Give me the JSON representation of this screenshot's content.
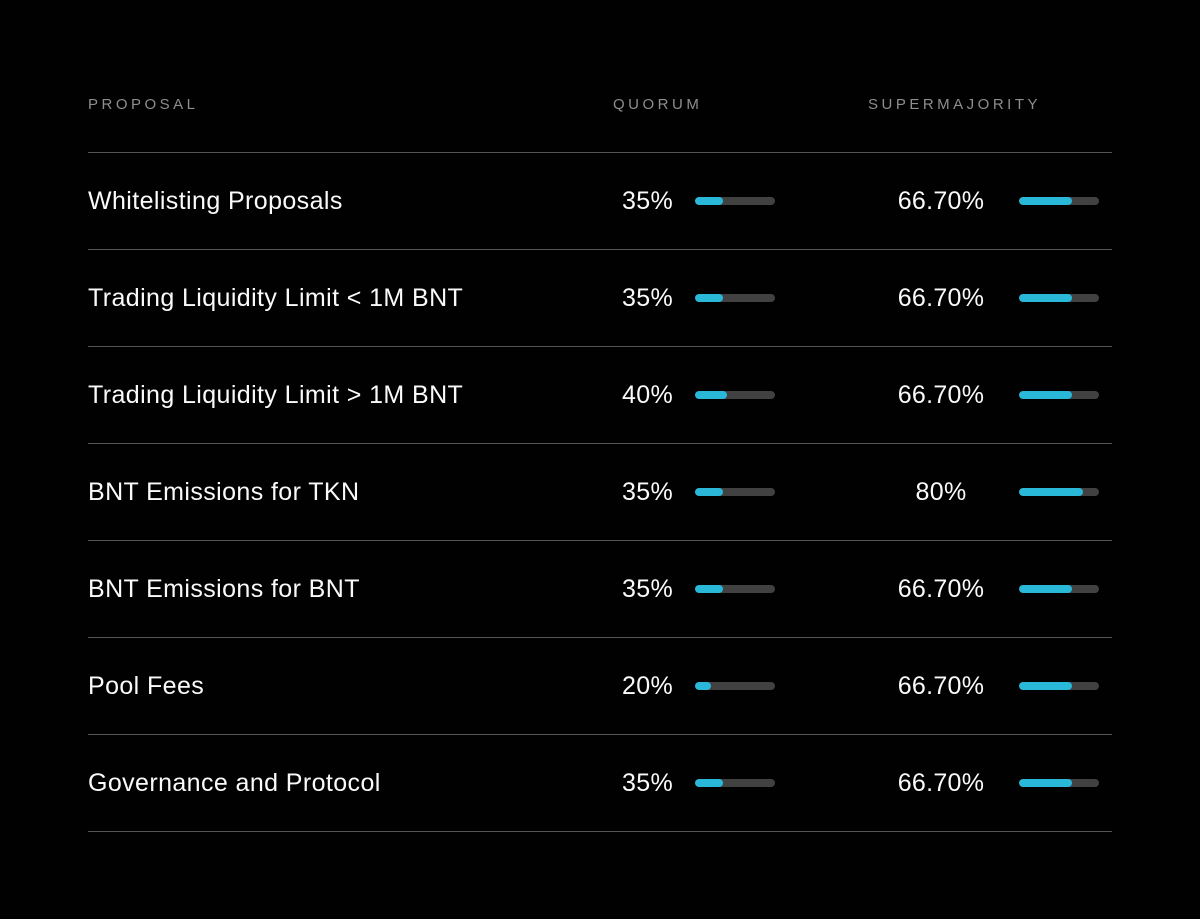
{
  "table": {
    "headers": {
      "proposal": "PROPOSAL",
      "quorum": "QUORUM",
      "supermajority": "SUPERMAJORITY"
    },
    "rows": [
      {
        "proposal": "Whitelisting Proposals",
        "quorum_label": "35%",
        "quorum_pct": 35,
        "supermajority_label": "66.70%",
        "supermajority_pct": 66.7
      },
      {
        "proposal": "Trading Liquidity Limit < 1M BNT",
        "quorum_label": "35%",
        "quorum_pct": 35,
        "supermajority_label": "66.70%",
        "supermajority_pct": 66.7
      },
      {
        "proposal": "Trading Liquidity Limit > 1M BNT",
        "quorum_label": "40%",
        "quorum_pct": 40,
        "supermajority_label": "66.70%",
        "supermajority_pct": 66.7
      },
      {
        "proposal": "BNT Emissions for TKN",
        "quorum_label": "35%",
        "quorum_pct": 35,
        "supermajority_label": "80%",
        "supermajority_pct": 80
      },
      {
        "proposal": "BNT Emissions for BNT",
        "quorum_label": "35%",
        "quorum_pct": 35,
        "supermajority_label": "66.70%",
        "supermajority_pct": 66.7
      },
      {
        "proposal": "Pool Fees",
        "quorum_label": "20%",
        "quorum_pct": 20,
        "supermajority_label": "66.70%",
        "supermajority_pct": 66.7
      },
      {
        "proposal": "Governance and Protocol",
        "quorum_label": "35%",
        "quorum_pct": 35,
        "supermajority_label": "66.70%",
        "supermajority_pct": 66.7
      }
    ]
  },
  "colors": {
    "background": "#010101",
    "accent": "#2ab8d9",
    "track": "#414141",
    "divider": "#555555",
    "header_text": "#8e8e8e",
    "row_text": "#fafafa"
  }
}
